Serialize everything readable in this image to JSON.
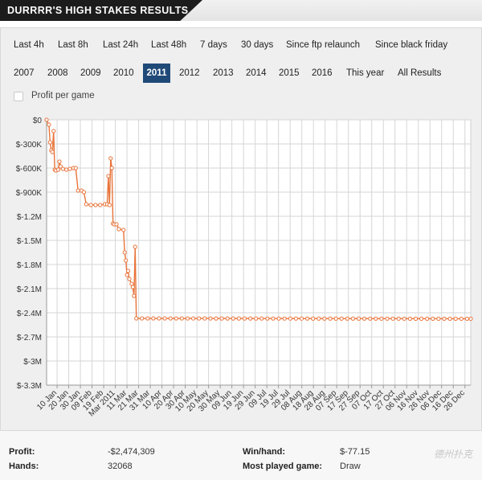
{
  "header": {
    "title": "DURRRR'S HIGH STAKES RESULTS"
  },
  "filters": {
    "row1": [
      "Last 4h",
      "Last 8h",
      "Last 24h",
      "Last 48h",
      "7 days",
      "30 days",
      "Since ftp relaunch",
      "Since black friday"
    ],
    "row2": [
      "2007",
      "2008",
      "2009",
      "2010",
      "2011",
      "2012",
      "2013",
      "2014",
      "2015",
      "2016",
      "This year",
      "All Results"
    ],
    "active": "2011",
    "profit_per_game_label": "Profit per game"
  },
  "chart_data": {
    "type": "line",
    "title": "",
    "xlabel": "",
    "ylabel": "",
    "color": "#e8743b",
    "grid": true,
    "ylim": [
      -3300000,
      0
    ],
    "y_ticks": [
      0,
      -300000,
      -600000,
      -900000,
      -1200000,
      -1500000,
      -1800000,
      -2100000,
      -2400000,
      -2700000,
      -3000000,
      -3300000
    ],
    "y_tick_labels": [
      "$0",
      "$-300K",
      "$-600K",
      "$-900K",
      "$-1.2M",
      "$-1.5M",
      "$-1.8M",
      "$-2.1M",
      "$-2.4M",
      "$-2.7M",
      "$-3M",
      "$-3.3M"
    ],
    "x_tick_labels": [
      "10 Jan",
      "20 Jan",
      "30 Jan",
      "09 Feb",
      "19 Feb",
      "Mar 2011",
      "11 Mar",
      "21 Mar",
      "31 Mar",
      "10 Apr",
      "20 Apr",
      "30 Apr",
      "10 May",
      "20 May",
      "30 May",
      "09 Jun",
      "19 Jun",
      "29 Jun",
      "09 Jul",
      "19 Jul",
      "29 Jul",
      "08 Aug",
      "18 Aug",
      "28 Aug",
      "07 Sep",
      "17 Sep",
      "27 Sep",
      "07 Oct",
      "17 Oct",
      "27 Oct",
      "06 Nov",
      "16 Nov",
      "26 Nov",
      "06 Dec",
      "16 Dec",
      "26 Dec"
    ],
    "x_tick_dates": [
      "2011-01-10",
      "2011-01-20",
      "2011-01-30",
      "2011-02-09",
      "2011-02-19",
      "2011-03-01",
      "2011-03-11",
      "2011-03-21",
      "2011-03-31",
      "2011-04-10",
      "2011-04-20",
      "2011-04-30",
      "2011-05-10",
      "2011-05-20",
      "2011-05-30",
      "2011-06-09",
      "2011-06-19",
      "2011-06-29",
      "2011-07-09",
      "2011-07-19",
      "2011-07-29",
      "2011-08-08",
      "2011-08-18",
      "2011-08-28",
      "2011-09-07",
      "2011-09-17",
      "2011-09-27",
      "2011-10-07",
      "2011-10-17",
      "2011-10-27",
      "2011-11-06",
      "2011-11-16",
      "2011-11-26",
      "2011-12-06",
      "2011-12-16",
      "2011-12-26"
    ],
    "series": [
      {
        "points": [
          [
            "2011-01-01",
            0
          ],
          [
            "2011-01-03",
            -60000
          ],
          [
            "2011-01-04",
            -280000
          ],
          [
            "2011-01-05",
            -380000
          ],
          [
            "2011-01-06",
            -400000
          ],
          [
            "2011-01-07",
            -140000
          ],
          [
            "2011-01-08",
            -620000
          ],
          [
            "2011-01-09",
            -630000
          ],
          [
            "2011-01-11",
            -620000
          ],
          [
            "2011-01-12",
            -520000
          ],
          [
            "2011-01-13",
            -580000
          ],
          [
            "2011-01-15",
            -610000
          ],
          [
            "2011-01-18",
            -620000
          ],
          [
            "2011-01-21",
            -610000
          ],
          [
            "2011-01-24",
            -600000
          ],
          [
            "2011-01-26",
            -600000
          ],
          [
            "2011-01-28",
            -880000
          ],
          [
            "2011-01-31",
            -880000
          ],
          [
            "2011-02-02",
            -900000
          ],
          [
            "2011-02-04",
            -1050000
          ],
          [
            "2011-02-08",
            -1060000
          ],
          [
            "2011-02-12",
            -1060000
          ],
          [
            "2011-02-16",
            -1060000
          ],
          [
            "2011-02-20",
            -1050000
          ],
          [
            "2011-02-22",
            -1050000
          ],
          [
            "2011-02-23",
            -700000
          ],
          [
            "2011-02-24",
            -1060000
          ],
          [
            "2011-02-25",
            -480000
          ],
          [
            "2011-02-26",
            -600000
          ],
          [
            "2011-02-27",
            -1290000
          ],
          [
            "2011-02-28",
            -1300000
          ],
          [
            "2011-03-02",
            -1300000
          ],
          [
            "2011-03-04",
            -1360000
          ],
          [
            "2011-03-08",
            -1370000
          ],
          [
            "2011-03-09",
            -1650000
          ],
          [
            "2011-03-10",
            -1750000
          ],
          [
            "2011-03-11",
            -1930000
          ],
          [
            "2011-03-12",
            -1880000
          ],
          [
            "2011-03-13",
            -1980000
          ],
          [
            "2011-03-15",
            -2040000
          ],
          [
            "2011-03-16",
            -2080000
          ],
          [
            "2011-03-17",
            -2190000
          ],
          [
            "2011-03-18",
            -1580000
          ],
          [
            "2011-03-19",
            -2470000
          ],
          [
            "2011-12-31",
            -2474309
          ]
        ]
      }
    ]
  },
  "stats": {
    "profit_label": "Profit:",
    "profit_value": "-$2,474,309",
    "hands_label": "Hands:",
    "hands_value": "32068",
    "winhand_label": "Win/hand:",
    "winhand_value": "$-77.15",
    "most_played_label": "Most played game:",
    "most_played_value": "Draw"
  },
  "watermark": "德州扑克"
}
